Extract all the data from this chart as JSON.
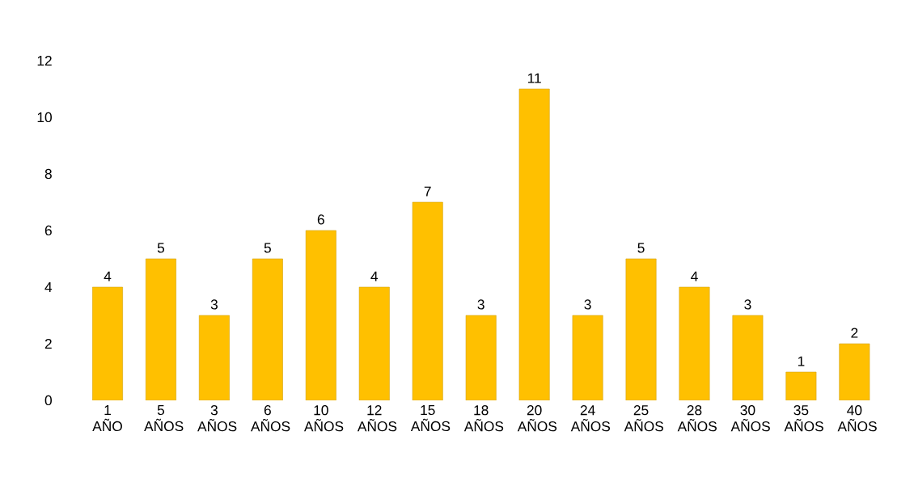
{
  "chart_data": {
    "type": "bar",
    "categories": [
      "1 AÑO",
      "5 AÑOS",
      "3 AÑOS",
      "6 AÑOS",
      "10 AÑOS",
      "12 AÑOS",
      "15 AÑOS",
      "18 AÑOS",
      "20 AÑOS",
      "24 AÑOS",
      "25 AÑOS",
      "28 AÑOS",
      "30 AÑOS",
      "35 AÑOS",
      "40 AÑOS"
    ],
    "values": [
      4,
      5,
      3,
      5,
      6,
      4,
      7,
      3,
      11,
      3,
      5,
      4,
      3,
      1,
      2
    ],
    "color": "#ffc000",
    "ylim": [
      0,
      12
    ],
    "yticks": [
      0,
      2,
      4,
      6,
      8,
      10,
      12
    ],
    "data_labels": true,
    "grid": false
  }
}
